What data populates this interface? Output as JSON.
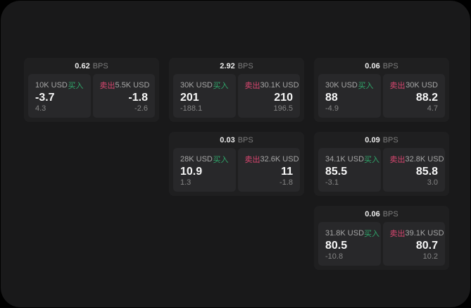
{
  "labels": {
    "bps_unit": "BPS",
    "buy": "买入",
    "sell": "卖出"
  },
  "colors": {
    "backdrop": "#000000",
    "panel": "#19191a",
    "card": "#1f1f20",
    "cell": "#28282a",
    "buy_green": "#2fa56a",
    "sell_red": "#d7466f"
  },
  "cards": [
    {
      "row": 1,
      "col": 1,
      "bps": "0.62",
      "buy": {
        "size": "10K USD",
        "value": "-3.7",
        "sub": "4.3"
      },
      "sell": {
        "size": "5.5K USD",
        "value": "-1.8",
        "sub": "-2.6"
      }
    },
    {
      "row": 1,
      "col": 2,
      "bps": "2.92",
      "buy": {
        "size": "30K USD",
        "value": "201",
        "sub": "-188.1"
      },
      "sell": {
        "size": "30.1K USD",
        "value": "210",
        "sub": "196.5"
      }
    },
    {
      "row": 1,
      "col": 3,
      "bps": "0.06",
      "buy": {
        "size": "30K USD",
        "value": "88",
        "sub": "-4.9"
      },
      "sell": {
        "size": "30K USD",
        "value": "88.2",
        "sub": "4.7"
      }
    },
    {
      "row": 2,
      "col": 2,
      "bps": "0.03",
      "buy": {
        "size": "28K USD",
        "value": "10.9",
        "sub": "1.3"
      },
      "sell": {
        "size": "32.6K USD",
        "value": "11",
        "sub": "-1.8"
      }
    },
    {
      "row": 2,
      "col": 3,
      "bps": "0.09",
      "buy": {
        "size": "34.1K USD",
        "value": "85.5",
        "sub": "-3.1"
      },
      "sell": {
        "size": "32.8K USD",
        "value": "85.8",
        "sub": "3.0"
      }
    },
    {
      "row": 3,
      "col": 3,
      "bps": "0.06",
      "buy": {
        "size": "31.8K USD",
        "value": "80.5",
        "sub": "-10.8"
      },
      "sell": {
        "size": "39.1K USD",
        "value": "80.7",
        "sub": "10.2"
      }
    }
  ]
}
